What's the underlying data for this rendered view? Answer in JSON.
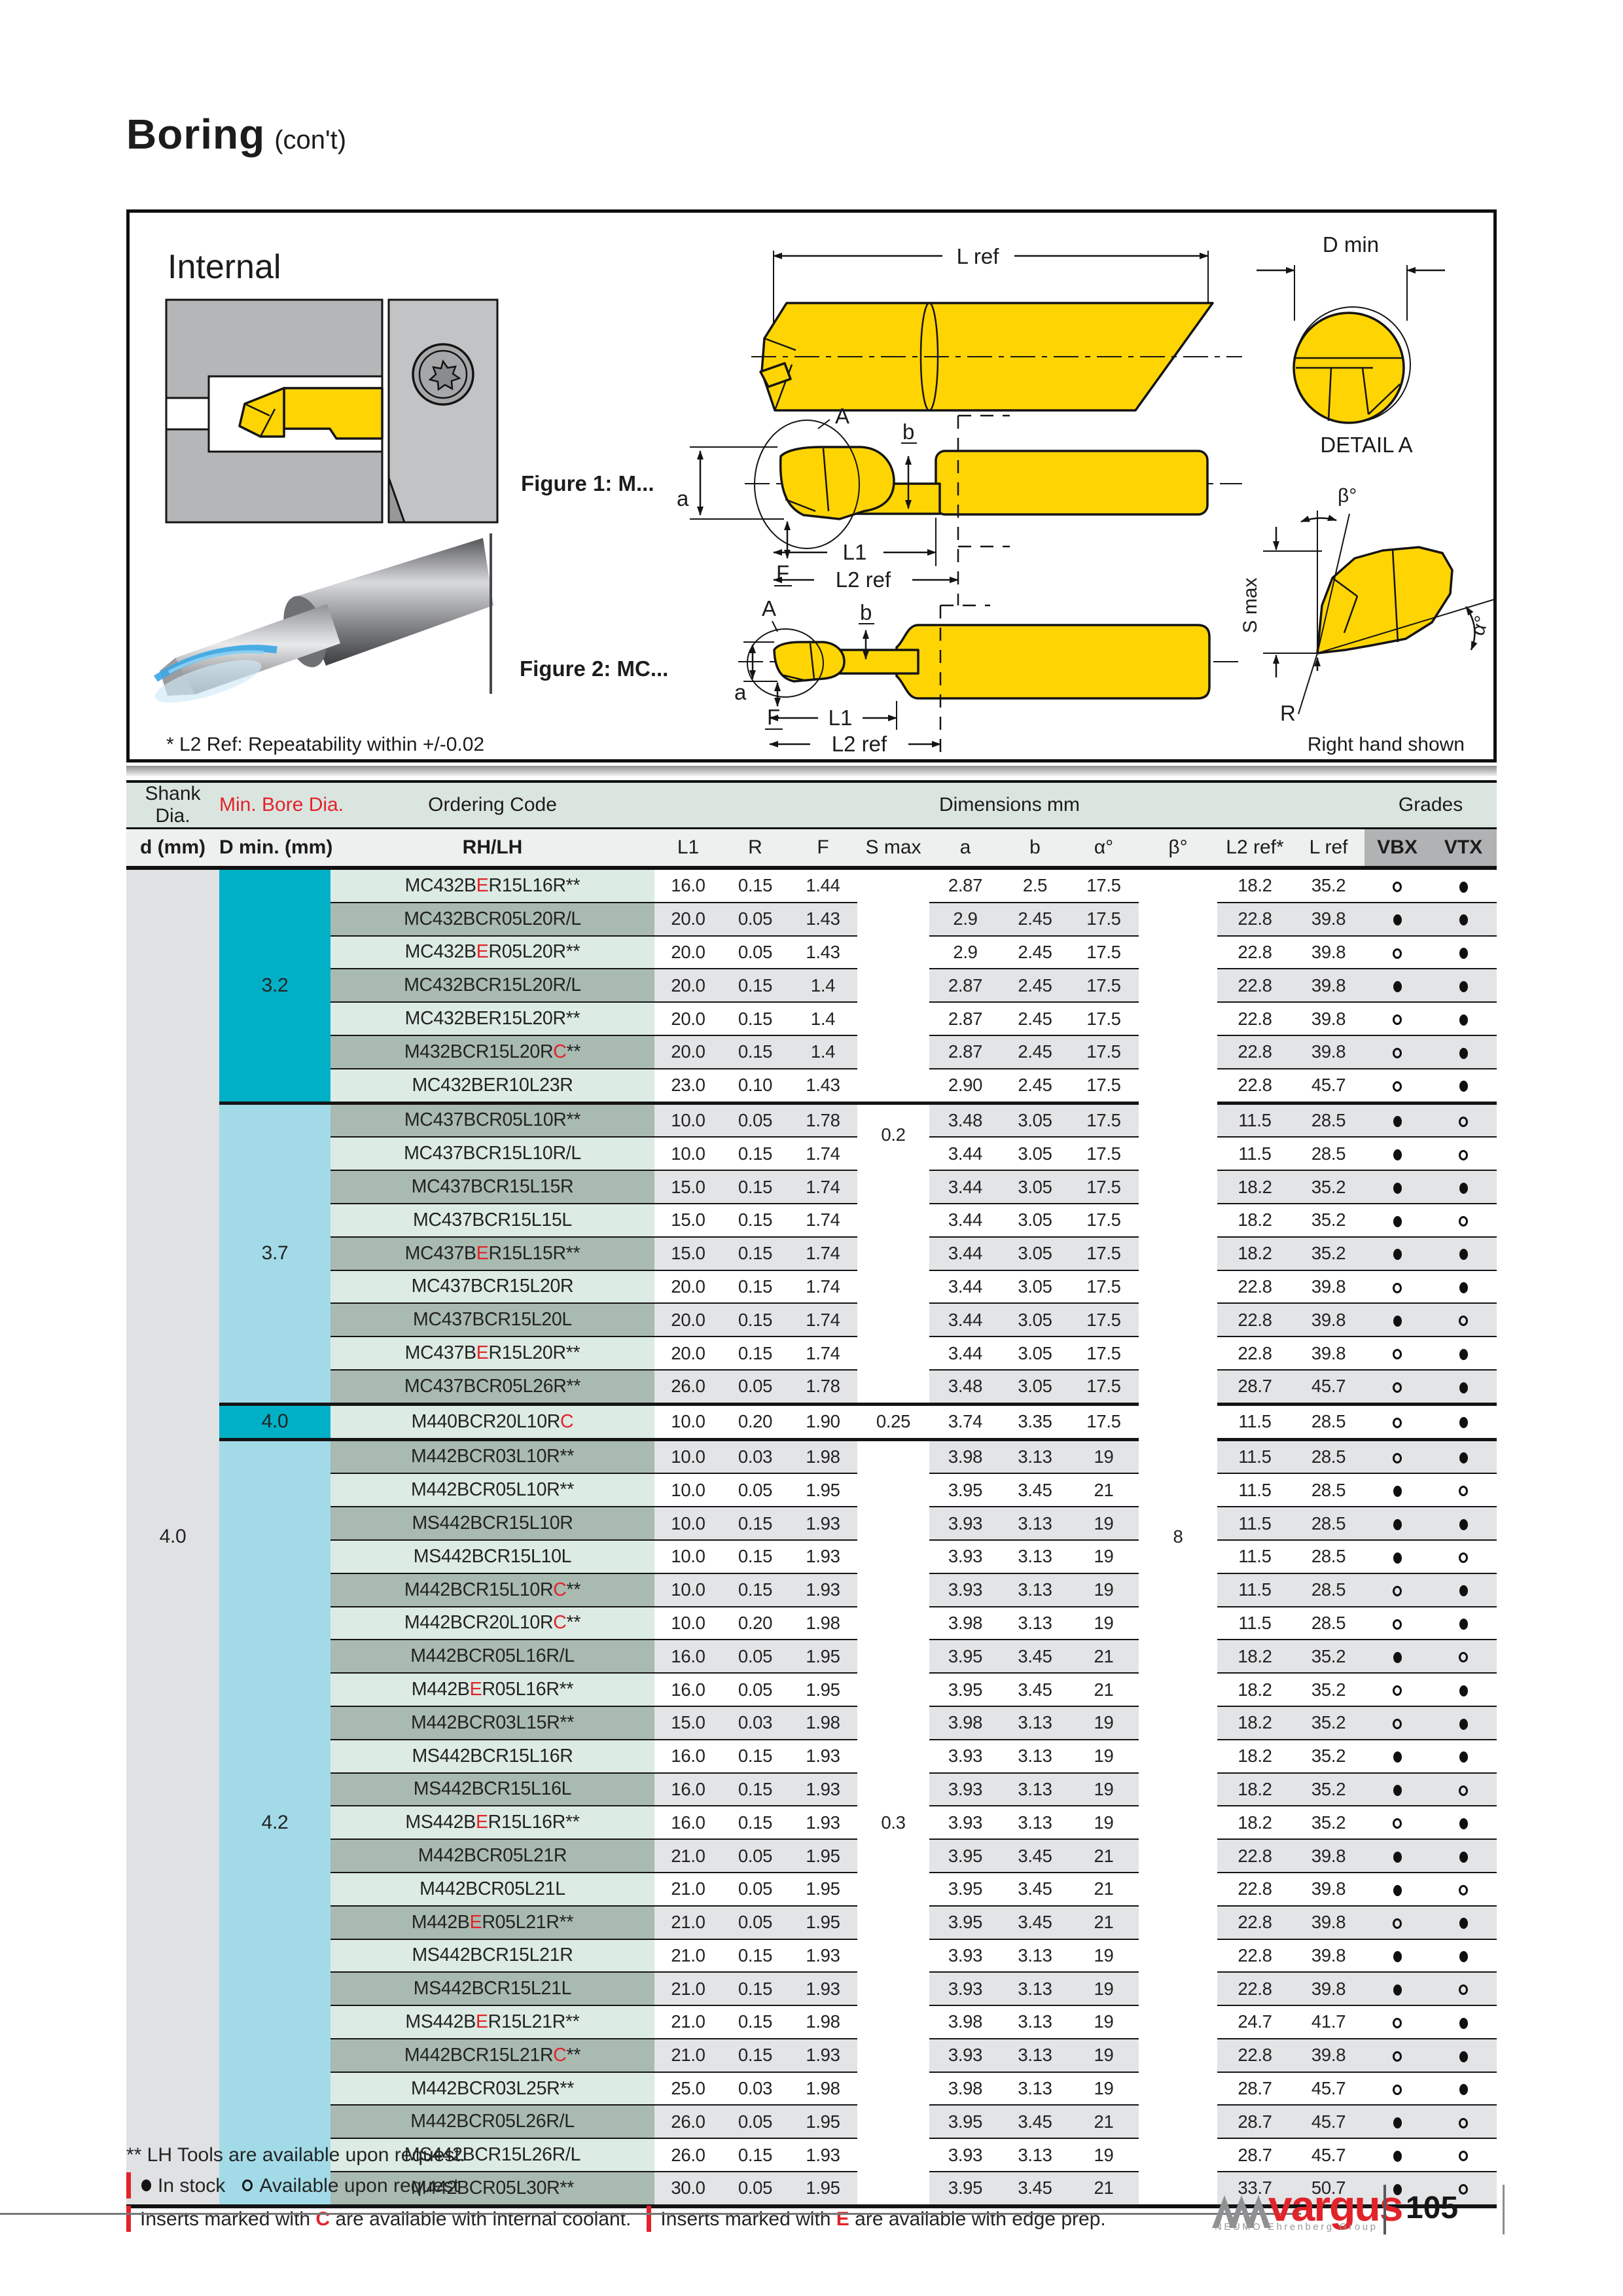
{
  "page": {
    "title": "Boring",
    "title_suffix": "(con't)"
  },
  "colors": {
    "teal": "#00b0c6",
    "teal_light": "#a2dbe7",
    "red": "#e2232a",
    "tool_yellow": "#ffd403"
  },
  "figure": {
    "panel_title": "Internal",
    "fig1_label": "Figure 1: M...",
    "fig2_label": "Figure 2: MC...",
    "dim_l_ref": "L ref",
    "dim_d_min": "D min",
    "detail_label": "DETAIL A",
    "dim_beta": "β°",
    "dim_alpha": "α°",
    "dim_s_max": "S max",
    "dim_r": "R",
    "dim_a_upper": "A",
    "dim_a": "a",
    "dim_b": "b",
    "dim_f": "F",
    "dim_l1": "L1",
    "dim_l2": "L2 ref",
    "footnote": "* L2 Ref: Repeatability within +/-0.02",
    "hand_note": "Right hand shown"
  },
  "table": {
    "header": {
      "shank_dia": "Shank Dia.",
      "min_bore": "Min. Bore Dia.",
      "ordering_code": "Ordering Code",
      "dimensions": "Dimensions mm",
      "grades": "Grades",
      "d_mm": "d (mm)",
      "d_min_mm": "D min. (mm)",
      "rhlh": "RH/LH",
      "cols": [
        "L1",
        "R",
        "F",
        "S max",
        "a",
        "b",
        "α°",
        "β°",
        "L2 ref*",
        "L ref"
      ],
      "vbx": "VBX",
      "vtx": "VTX"
    },
    "shank_d": "4.0",
    "beta": "8",
    "groups": [
      {
        "dmin": "3.2",
        "tone": "strong",
        "smax": "",
        "smax_pos": "center",
        "rows": [
          [
            "MC432B[E]R15L16R**",
            "16.0",
            "0.15",
            "1.44",
            "2.87",
            "2.5",
            "17.5",
            "18.2",
            "35.2",
            "o",
            "f"
          ],
          [
            "MC432BCR05L20R/L",
            "20.0",
            "0.05",
            "1.43",
            "2.9",
            "2.45",
            "17.5",
            "22.8",
            "39.8",
            "f",
            "f"
          ],
          [
            "MC432B[E]R05L20R**",
            "20.0",
            "0.05",
            "1.43",
            "2.9",
            "2.45",
            "17.5",
            "22.8",
            "39.8",
            "o",
            "f"
          ],
          [
            "MC432BCR15L20R/L",
            "20.0",
            "0.15",
            "1.4",
            "2.87",
            "2.45",
            "17.5",
            "22.8",
            "39.8",
            "f",
            "f"
          ],
          [
            "MC432BER15L20R**",
            "20.0",
            "0.15",
            "1.4",
            "2.87",
            "2.45",
            "17.5",
            "22.8",
            "39.8",
            "o",
            "f"
          ],
          [
            "M432BCR15L20R[C]**",
            "20.0",
            "0.15",
            "1.4",
            "2.87",
            "2.45",
            "17.5",
            "22.8",
            "39.8",
            "o",
            "f"
          ],
          [
            "MC432BER10L23R",
            "23.0",
            "0.10",
            "1.43",
            "2.90",
            "2.45",
            "17.5",
            "22.8",
            "45.7",
            "o",
            "f"
          ]
        ]
      },
      {
        "dmin": "3.7",
        "tone": "light",
        "smax": "0.2",
        "smax_pos": "top",
        "rows": [
          [
            "MC437BCR05L10R**",
            "10.0",
            "0.05",
            "1.78",
            "3.48",
            "3.05",
            "17.5",
            "11.5",
            "28.5",
            "f",
            "o"
          ],
          [
            "MC437BCR15L10R/L",
            "10.0",
            "0.15",
            "1.74",
            "3.44",
            "3.05",
            "17.5",
            "11.5",
            "28.5",
            "f",
            "o"
          ],
          [
            "MC437BCR15L15R",
            "15.0",
            "0.15",
            "1.74",
            "3.44",
            "3.05",
            "17.5",
            "18.2",
            "35.2",
            "f",
            "f"
          ],
          [
            "MC437BCR15L15L",
            "15.0",
            "0.15",
            "1.74",
            "3.44",
            "3.05",
            "17.5",
            "18.2",
            "35.2",
            "f",
            "o"
          ],
          [
            "MC437B[E]R15L15R**",
            "15.0",
            "0.15",
            "1.74",
            "3.44",
            "3.05",
            "17.5",
            "18.2",
            "35.2",
            "f",
            "f"
          ],
          [
            "MC437BCR15L20R",
            "20.0",
            "0.15",
            "1.74",
            "3.44",
            "3.05",
            "17.5",
            "22.8",
            "39.8",
            "o",
            "f"
          ],
          [
            "MC437BCR15L20L",
            "20.0",
            "0.15",
            "1.74",
            "3.44",
            "3.05",
            "17.5",
            "22.8",
            "39.8",
            "f",
            "o"
          ],
          [
            "MC437B[E]R15L20R**",
            "20.0",
            "0.15",
            "1.74",
            "3.44",
            "3.05",
            "17.5",
            "22.8",
            "39.8",
            "o",
            "f"
          ],
          [
            "MC437BCR05L26R**",
            "26.0",
            "0.05",
            "1.78",
            "3.48",
            "3.05",
            "17.5",
            "28.7",
            "45.7",
            "o",
            "f"
          ]
        ]
      },
      {
        "dmin": "4.0",
        "tone": "strong",
        "smax": "0.25",
        "smax_pos": "center",
        "rows": [
          [
            "M440BCR20L10R[C]",
            "10.0",
            "0.20",
            "1.90",
            "3.74",
            "3.35",
            "17.5",
            "11.5",
            "28.5",
            "o",
            "f"
          ]
        ]
      },
      {
        "dmin": "4.2",
        "tone": "light",
        "smax": "0.3",
        "smax_pos": "center",
        "rows": [
          [
            "M442BCR03L10R**",
            "10.0",
            "0.03",
            "1.98",
            "3.98",
            "3.13",
            "19",
            "11.5",
            "28.5",
            "o",
            "f"
          ],
          [
            "M442BCR05L10R**",
            "10.0",
            "0.05",
            "1.95",
            "3.95",
            "3.45",
            "21",
            "11.5",
            "28.5",
            "f",
            "o"
          ],
          [
            "MS442BCR15L10R",
            "10.0",
            "0.15",
            "1.93",
            "3.93",
            "3.13",
            "19",
            "11.5",
            "28.5",
            "f",
            "f"
          ],
          [
            "MS442BCR15L10L",
            "10.0",
            "0.15",
            "1.93",
            "3.93",
            "3.13",
            "19",
            "11.5",
            "28.5",
            "f",
            "o"
          ],
          [
            "M442BCR15L10R[C]**",
            "10.0",
            "0.15",
            "1.93",
            "3.93",
            "3.13",
            "19",
            "11.5",
            "28.5",
            "o",
            "f"
          ],
          [
            "M442BCR20L10R[C]**",
            "10.0",
            "0.20",
            "1.98",
            "3.98",
            "3.13",
            "19",
            "11.5",
            "28.5",
            "o",
            "f"
          ],
          [
            "M442BCR05L16R/L",
            "16.0",
            "0.05",
            "1.95",
            "3.95",
            "3.45",
            "21",
            "18.2",
            "35.2",
            "f",
            "o"
          ],
          [
            "M442B[E]R05L16R**",
            "16.0",
            "0.05",
            "1.95",
            "3.95",
            "3.45",
            "21",
            "18.2",
            "35.2",
            "o",
            "f"
          ],
          [
            "M442BCR03L15R**",
            "15.0",
            "0.03",
            "1.98",
            "3.98",
            "3.13",
            "19",
            "18.2",
            "35.2",
            "o",
            "f"
          ],
          [
            "MS442BCR15L16R",
            "16.0",
            "0.15",
            "1.93",
            "3.93",
            "3.13",
            "19",
            "18.2",
            "35.2",
            "f",
            "f"
          ],
          [
            "MS442BCR15L16L",
            "16.0",
            "0.15",
            "1.93",
            "3.93",
            "3.13",
            "19",
            "18.2",
            "35.2",
            "f",
            "o"
          ],
          [
            "MS442B[E]R15L16R**",
            "16.0",
            "0.15",
            "1.93",
            "3.93",
            "3.13",
            "19",
            "18.2",
            "35.2",
            "o",
            "f"
          ],
          [
            "M442BCR05L21R",
            "21.0",
            "0.05",
            "1.95",
            "3.95",
            "3.45",
            "21",
            "22.8",
            "39.8",
            "f",
            "f"
          ],
          [
            "M442BCR05L21L",
            "21.0",
            "0.05",
            "1.95",
            "3.95",
            "3.45",
            "21",
            "22.8",
            "39.8",
            "f",
            "o"
          ],
          [
            "M442B[E]R05L21R**",
            "21.0",
            "0.05",
            "1.95",
            "3.95",
            "3.45",
            "21",
            "22.8",
            "39.8",
            "o",
            "f"
          ],
          [
            "MS442BCR15L21R",
            "21.0",
            "0.15",
            "1.93",
            "3.93",
            "3.13",
            "19",
            "22.8",
            "39.8",
            "f",
            "f"
          ],
          [
            "MS442BCR15L21L",
            "21.0",
            "0.15",
            "1.93",
            "3.93",
            "3.13",
            "19",
            "22.8",
            "39.8",
            "f",
            "o"
          ],
          [
            "MS442B[E]R15L21R**",
            "21.0",
            "0.15",
            "1.98",
            "3.98",
            "3.13",
            "19",
            "24.7",
            "41.7",
            "o",
            "f"
          ],
          [
            "M442BCR15L21R[C]**",
            "21.0",
            "0.15",
            "1.93",
            "3.93",
            "3.13",
            "19",
            "22.8",
            "39.8",
            "o",
            "f"
          ],
          [
            "M442BCR03L25R**",
            "25.0",
            "0.03",
            "1.98",
            "3.98",
            "3.13",
            "19",
            "28.7",
            "45.7",
            "o",
            "f"
          ],
          [
            "M442BCR05L26R/L",
            "26.0",
            "0.05",
            "1.95",
            "3.95",
            "3.45",
            "21",
            "28.7",
            "45.7",
            "f",
            "o"
          ],
          [
            "MS442BCR15L26R/L",
            "26.0",
            "0.15",
            "1.93",
            "3.93",
            "3.13",
            "19",
            "28.7",
            "45.7",
            "f",
            "o"
          ],
          [
            "M442BCR05L30R**",
            "30.0",
            "0.05",
            "1.95",
            "3.95",
            "3.45",
            "21",
            "33.7",
            "50.7",
            "f",
            "o"
          ]
        ]
      }
    ]
  },
  "footer": {
    "note_lh": "** LH Tools are available upon request.",
    "stock_filled_label": "In stock",
    "stock_open_label": "Available upon request",
    "coolant_pre": "Inserts marked with ",
    "coolant_c": "C",
    "coolant_post": " are available with internal coolant.",
    "edge_pre": "Inserts marked with ",
    "edge_e": "E",
    "edge_post": " are available with edge prep."
  },
  "logo": {
    "brand": "vargus",
    "sub": "NEUMO Ehrenberg Group",
    "page": "105"
  }
}
